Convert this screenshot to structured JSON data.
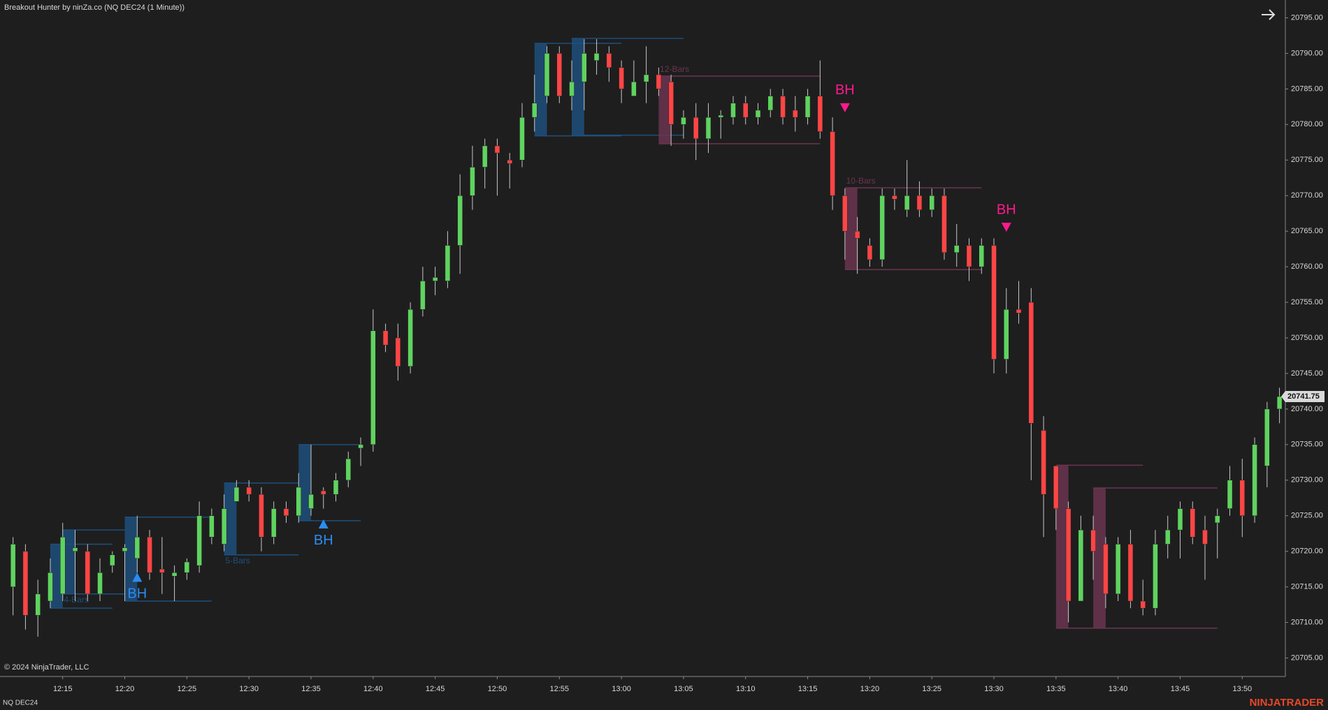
{
  "chart_data": {
    "type": "candlestick",
    "title": "Breakout Hunter by ninZa.co (NQ DEC24 (1 Minute))",
    "copyright": "© 2024 NinjaTrader, LLC",
    "instrument": "NQ DEC24",
    "brand": "NINJATRADER",
    "x": [
      null,
      null,
      null,
      null,
      "12:15",
      null,
      null,
      null,
      null,
      "12:20",
      null,
      null,
      null,
      null,
      "12:25",
      null,
      null,
      null,
      null,
      "12:30",
      null,
      null,
      null,
      null,
      "12:35",
      null,
      null,
      null,
      null,
      "12:40",
      null,
      null,
      null,
      null,
      "12:45",
      null,
      null,
      null,
      null,
      "12:50",
      null,
      null,
      null,
      null,
      "12:55",
      null,
      null,
      null,
      null,
      "13:00",
      null,
      null,
      null,
      null,
      "13:05",
      null,
      null,
      null,
      null,
      "13:10",
      null,
      null,
      null,
      null,
      "13:15",
      null,
      null,
      null,
      null,
      "13:20",
      null,
      null,
      null,
      null,
      "13:25",
      null,
      null,
      null,
      null,
      "13:30",
      null,
      null,
      null,
      null,
      "13:35",
      null,
      null,
      null,
      null,
      "13:40",
      null,
      null,
      null,
      null,
      "13:45",
      null,
      null,
      null,
      null,
      "13:50",
      null,
      null,
      null
    ],
    "open": [
      20715,
      20720,
      20711,
      20713,
      20714,
      20720,
      20720,
      20714,
      20718,
      20720,
      20719,
      20722,
      20717.5,
      20716.5,
      20717,
      20718,
      20722,
      20721,
      20727,
      20729,
      20728,
      20722,
      20726,
      20725,
      20726,
      20728.5,
      20728,
      20730,
      20734.5,
      20735,
      20751,
      20750,
      20746,
      20754,
      20758,
      20758,
      20763,
      20770,
      20774,
      20777,
      20775,
      20775,
      20781,
      20784,
      20790,
      20784,
      20786,
      20789,
      20790,
      20788,
      20784,
      20786,
      20787,
      20786,
      20780,
      20781,
      20778,
      20781,
      20781,
      20783,
      20781,
      20782,
      20784,
      20782,
      20781,
      20784,
      20779,
      20770,
      20765,
      20763,
      20761,
      20770,
      20768,
      20770,
      20768,
      20770,
      20762,
      20763,
      20760,
      20763,
      20747,
      20754,
      20755,
      20737,
      20732,
      20726,
      20713,
      20723,
      20721,
      20714,
      20721,
      20713,
      20712,
      20721,
      20723,
      20726,
      20723,
      20724,
      20726,
      20730,
      20725,
      20732,
      20740
    ],
    "high": [
      20722,
      20721,
      20716,
      20719,
      20724,
      20723,
      20721,
      20719,
      20720,
      20721,
      20725,
      20723,
      20722,
      20718,
      20719,
      20727,
      20726,
      20728,
      20730,
      20730,
      20729,
      20727,
      20727,
      20731,
      20735,
      20729,
      20731,
      20734,
      20736,
      20754,
      20752,
      20752,
      20755,
      20760,
      20760,
      20765,
      20773,
      20777,
      20778,
      20778,
      20776,
      20783,
      20787,
      20791,
      20791,
      20789,
      20792,
      20792,
      20791,
      20789,
      20789,
      20791,
      20788,
      20787,
      20782,
      20783,
      20783,
      20782,
      20784,
      20784,
      20783,
      20785,
      20785,
      20784,
      20785,
      20789,
      20781,
      20771,
      20767,
      20764,
      20771,
      20771,
      20775,
      20772,
      20771,
      20771,
      20766,
      20764,
      20764,
      20764,
      20757,
      20758,
      20757,
      20739,
      20732,
      20727,
      20725,
      20725,
      20722,
      20722,
      20723,
      20716,
      20723,
      20725,
      20727,
      20727,
      20725,
      20726,
      20732,
      20733,
      20736,
      20741,
      20743
    ],
    "low": [
      20711,
      20709,
      20708,
      20712,
      20713,
      20713,
      20713,
      20713,
      20717,
      20713,
      20717,
      20716,
      20714,
      20713,
      20716,
      20717,
      20721,
      20720,
      20727,
      20727,
      20720,
      20721,
      20724,
      20724,
      20725,
      20726,
      20727,
      20729,
      20732,
      20734,
      20748,
      20744,
      20745,
      20753,
      20756,
      20757,
      20759,
      20768,
      20771,
      20770,
      20771,
      20774,
      20779,
      20783,
      20783,
      20782,
      20782,
      20787,
      20786,
      20783,
      20784,
      20783,
      20784,
      20777,
      20778,
      20775,
      20776,
      20778,
      20780,
      20780,
      20780,
      20781,
      20780,
      20779,
      20780,
      20778,
      20768,
      20761,
      20759,
      20760,
      20760,
      20768,
      20767,
      20767,
      20767,
      20761,
      20760,
      20758,
      20759,
      20745,
      20745,
      20752,
      20730,
      20722,
      20723,
      20710,
      20713,
      20716,
      20712,
      20713,
      20712,
      20711,
      20711,
      20719,
      20719,
      20721,
      20716,
      20719,
      20725,
      20722,
      20724,
      20729,
      20738
    ],
    "close": [
      20721,
      20711,
      20714,
      20717,
      20722,
      20720.5,
      20714,
      20717,
      20719.5,
      20720.5,
      20722,
      20717,
      20717,
      20717,
      20718.5,
      20725,
      20725,
      20726,
      20729,
      20728,
      20722,
      20726,
      20725,
      20729,
      20728,
      20728,
      20730,
      20733,
      20735,
      20751,
      20749,
      20746,
      20754,
      20758,
      20758.5,
      20763,
      20770,
      20774,
      20777,
      20776,
      20774.5,
      20781,
      20783,
      20790,
      20784,
      20786,
      20790,
      20790,
      20788,
      20785,
      20786,
      20787,
      20785,
      20780,
      20781,
      20778,
      20781,
      20781.3,
      20783,
      20781,
      20782,
      20784,
      20781,
      20781,
      20784,
      20779,
      20770,
      20765,
      20764,
      20761,
      20770,
      20769.5,
      20770,
      20768,
      20770,
      20762,
      20763,
      20760,
      20763,
      20747,
      20754,
      20753.5,
      20738,
      20728,
      20726,
      20713,
      20723,
      20720,
      20714,
      20721,
      20713,
      20712,
      20721,
      20723,
      20726,
      20722,
      20721,
      20725,
      20730,
      20725,
      20735,
      20740,
      20741.75
    ],
    "up_color": "#5fd35f",
    "down_color": "#ff4545",
    "ylim": [
      20702.4,
      20797.5
    ],
    "yticks": [
      {
        "value": 20705,
        "label": "20705.00"
      },
      {
        "value": 20710,
        "label": "20710.00"
      },
      {
        "value": 20715,
        "label": "20715.00"
      },
      {
        "value": 20720,
        "label": "20720.00"
      },
      {
        "value": 20725,
        "label": "20725.00"
      },
      {
        "value": 20730,
        "label": "20730.00"
      },
      {
        "value": 20735,
        "label": "20735.00"
      },
      {
        "value": 20740,
        "label": "20740.00"
      },
      {
        "value": 20745,
        "label": "20745.00"
      },
      {
        "value": 20750,
        "label": "20750.00"
      },
      {
        "value": 20755,
        "label": "20755.00"
      },
      {
        "value": 20760,
        "label": "20760.00"
      },
      {
        "value": 20765,
        "label": "20765.00"
      },
      {
        "value": 20770,
        "label": "20770.00"
      },
      {
        "value": 20775,
        "label": "20775.00"
      },
      {
        "value": 20780,
        "label": "20780.00"
      },
      {
        "value": 20785,
        "label": "20785.00"
      },
      {
        "value": 20790,
        "label": "20790.00"
      },
      {
        "value": 20795,
        "label": "20795.00"
      }
    ],
    "last_price": 20741.75,
    "zones": [
      {
        "direction": "up",
        "top": 20721,
        "bottom": 20712
      },
      {
        "label": "4-Bars",
        "direction": "up",
        "top": 20723,
        "bottom": 20714
      },
      {
        "direction": "up",
        "top": 20724.8,
        "bottom": 20713
      },
      {
        "label": "5-Bars",
        "direction": "up",
        "top": 20729.6,
        "bottom": 20719.5
      },
      {
        "direction": "up",
        "top": 20735,
        "bottom": 20724.3
      },
      {
        "direction": "up",
        "top": 20791.4,
        "bottom": 20778.4
      },
      {
        "direction": "up",
        "top": 20792.1,
        "bottom": 20778.5
      },
      {
        "label": "12-Bars",
        "direction": "down",
        "top": 20786.8,
        "bottom": 20777.3
      },
      {
        "label": "10-Bars",
        "direction": "down",
        "top": 20771.1,
        "bottom": 20759.6
      },
      {
        "direction": "down",
        "top": 20732.1,
        "bottom": 20709.2
      },
      {
        "direction": "down",
        "top": 20728.9,
        "bottom": 20709.2
      }
    ],
    "signals": [
      {
        "text": "BH",
        "direction": "up",
        "price": 20716.3
      },
      {
        "text": "BH",
        "direction": "up",
        "price": 20723.8
      },
      {
        "text": "BH",
        "direction": "down",
        "price": 20782.4
      },
      {
        "text": "BH",
        "direction": "down",
        "price": 20765.6
      }
    ],
    "up_zone_color": "#1f4f7c",
    "down_zone_color": "#6b3550",
    "up_signal_color": "#2b8cf0",
    "down_signal_color": "#ff1a8c"
  }
}
